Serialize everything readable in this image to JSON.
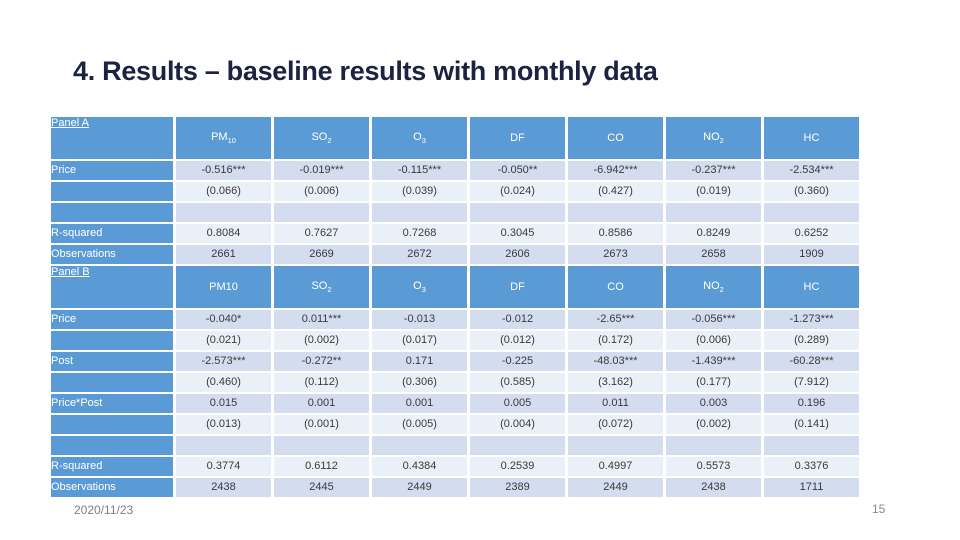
{
  "slide": {
    "title": "4. Results – baseline results with monthly data",
    "footer_date": "2020/11/23",
    "page_number": "15"
  },
  "colors": {
    "header_blue": "#5b9bd5",
    "band_dark": "#d3ddef",
    "band_light": "#eaf0f8",
    "title_color": "#1c2240",
    "footer_gray": "#7f7f7f"
  },
  "table": {
    "panels": [
      {
        "label": "Panel A",
        "columns": [
          {
            "text": "PM",
            "sub": "10"
          },
          {
            "text": "SO",
            "sub": "2"
          },
          {
            "text": "O",
            "sub": "3"
          },
          {
            "text": "DF"
          },
          {
            "text": "CO"
          },
          {
            "text": "NO",
            "sub": "2"
          },
          {
            "text": "HC"
          }
        ],
        "rows": [
          {
            "label": "Price",
            "cells": [
              "-0.516***",
              "-0.019***",
              "-0.115***",
              "-0.050**",
              "-6.942***",
              "-0.237***",
              "-2.534***"
            ]
          },
          {
            "label": "",
            "cells": [
              "(0.066)",
              "(0.006)",
              "(0.039)",
              "(0.024)",
              "(0.427)",
              "(0.019)",
              "(0.360)"
            ]
          },
          {
            "label": "",
            "cells": [
              "",
              "",
              "",
              "",
              "",
              "",
              ""
            ]
          },
          {
            "label": "R-squared",
            "cells": [
              "0.8084",
              "0.7627",
              "0.7268",
              "0.3045",
              "0.8586",
              "0.8249",
              "0.6252"
            ]
          },
          {
            "label": "Observations",
            "cells": [
              "2661",
              "2669",
              "2672",
              "2606",
              "2673",
              "2658",
              "1909"
            ]
          }
        ]
      },
      {
        "label": "Panel B",
        "columns": [
          {
            "text": "PM10"
          },
          {
            "text": "SO",
            "sub": "2"
          },
          {
            "text": "O",
            "sub": "3"
          },
          {
            "text": "DF"
          },
          {
            "text": "CO"
          },
          {
            "text": "NO",
            "sub": "2"
          },
          {
            "text": "HC"
          }
        ],
        "rows": [
          {
            "label": "Price",
            "cells": [
              "-0.040*",
              "0.011***",
              "-0.013",
              "-0.012",
              "-2.65***",
              "-0.056***",
              "-1.273***"
            ]
          },
          {
            "label": "",
            "cells": [
              "(0.021)",
              "(0.002)",
              "(0.017)",
              "(0.012)",
              "(0.172)",
              "(0.006)",
              "(0.289)"
            ]
          },
          {
            "label": "Post",
            "cells": [
              "-2.573***",
              "-0.272**",
              "0.171",
              "-0.225",
              "-48.03***",
              "-1.439***",
              "-60.28***"
            ]
          },
          {
            "label": "",
            "cells": [
              "(0.460)",
              "(0.112)",
              "(0.306)",
              "(0.585)",
              "(3.162)",
              "(0.177)",
              "(7.912)"
            ]
          },
          {
            "label": "Price*Post",
            "cells": [
              "0.015",
              "0.001",
              "0.001",
              "0.005",
              "0.011",
              "0.003",
              "0.196"
            ]
          },
          {
            "label": "",
            "cells": [
              "(0.013)",
              "(0.001)",
              "(0.005)",
              "(0.004)",
              "(0.072)",
              "(0.002)",
              "(0.141)"
            ]
          },
          {
            "label": "",
            "cells": [
              "",
              "",
              "",
              "",
              "",
              "",
              ""
            ]
          },
          {
            "label": "R-squared",
            "cells": [
              "0.3774",
              "0.6112",
              "0.4384",
              "0.2539",
              "0.4997",
              "0.5573",
              "0.3376"
            ]
          },
          {
            "label": "Observations",
            "cells": [
              "2438",
              "2445",
              "2449",
              "2389",
              "2449",
              "2438",
              "1711"
            ]
          }
        ]
      }
    ]
  }
}
